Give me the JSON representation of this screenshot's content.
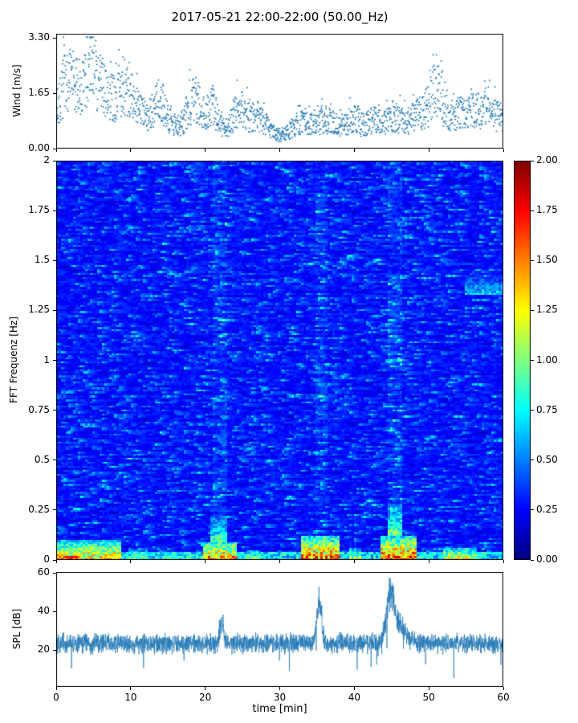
{
  "title": "2017-05-21 22:00-22:00 (50.00_Hz)",
  "chart_data": [
    {
      "type": "scatter",
      "name": "wind-speed",
      "ylabel": "Wind [m/s]",
      "ylim": [
        0,
        3.42
      ],
      "yticks": [
        0.0,
        1.65,
        3.3
      ],
      "ytick_labels": [
        "0.00",
        "1.65",
        "3.30"
      ],
      "xlim": [
        0,
        60
      ],
      "marker_color": "#1f77b4",
      "seed": 7,
      "envelope": [
        1.1,
        1.9,
        2.1,
        1.8,
        2.3,
        2.4,
        2.0,
        1.5,
        1.6,
        1.9,
        1.6,
        1.2,
        1.0,
        1.2,
        1.6,
        0.9,
        0.7,
        0.8,
        1.4,
        1.5,
        1.1,
        1.3,
        0.8,
        0.6,
        1.1,
        1.3,
        0.9,
        1.0,
        0.8,
        0.5,
        0.4,
        0.5,
        0.7,
        0.8,
        0.7,
        0.8,
        0.9,
        0.8,
        0.7,
        0.8,
        0.9,
        0.7,
        0.8,
        0.9,
        0.8,
        1.0,
        0.9,
        0.8,
        1.0,
        1.1,
        1.3,
        2.0,
        1.2,
        1.0,
        1.1,
        1.0,
        1.2,
        1.1,
        1.3,
        1.0,
        0.9
      ]
    },
    {
      "type": "heatmap",
      "name": "fft-spectrogram",
      "ylabel": "FFT Frequenz [Hz]",
      "ylim": [
        0,
        2
      ],
      "yticks": [
        0,
        0.25,
        0.5,
        0.75,
        1,
        1.25,
        1.5,
        1.75,
        2
      ],
      "ytick_labels": [
        "0",
        "0.25",
        "0.5",
        "0.75",
        "1",
        "1.25",
        "1.5",
        "1.75",
        "2"
      ],
      "xlim": [
        0,
        60
      ],
      "colormap": "jet",
      "vmin": 0,
      "vmax": 2,
      "seed": 11,
      "grid": {
        "cols": 186,
        "rows": 199
      },
      "features": [
        {
          "t0": 0,
          "t1": 8.5,
          "f0": 0,
          "f1": 0.1,
          "v": 1.7
        },
        {
          "t0": 0,
          "t1": 3,
          "f0": 0,
          "f1": 0.05,
          "v": 2.0
        },
        {
          "t0": 9.5,
          "t1": 12,
          "f0": 0,
          "f1": 0.05,
          "v": 1.2
        },
        {
          "t0": 14,
          "t1": 16,
          "f0": 0,
          "f1": 0.04,
          "v": 1.1
        },
        {
          "t0": 19.5,
          "t1": 24,
          "f0": 0,
          "f1": 0.09,
          "v": 1.9
        },
        {
          "t0": 20.5,
          "t1": 23,
          "f0": 0.09,
          "f1": 0.22,
          "v": 1.1
        },
        {
          "t0": 25.5,
          "t1": 27.5,
          "f0": 0,
          "f1": 0.05,
          "v": 1.3
        },
        {
          "t0": 33,
          "t1": 38,
          "f0": 0,
          "f1": 0.12,
          "v": 2.0
        },
        {
          "t0": 39.5,
          "t1": 41,
          "f0": 0,
          "f1": 0.06,
          "v": 1.4
        },
        {
          "t0": 43.5,
          "t1": 48.5,
          "f0": 0,
          "f1": 0.12,
          "v": 2.0
        },
        {
          "t0": 44.5,
          "t1": 46.5,
          "f0": 0.12,
          "f1": 0.28,
          "v": 1.3
        },
        {
          "t0": 52,
          "t1": 56.5,
          "f0": 0,
          "f1": 0.06,
          "v": 1.6
        },
        {
          "t0": 55,
          "t1": 60,
          "f0": 1.33,
          "f1": 1.43,
          "v": 0.85
        }
      ],
      "column_boosts": [
        {
          "t0": 21,
          "t1": 23,
          "k": 1.2
        },
        {
          "t0": 34.8,
          "t1": 36.4,
          "k": 1.2
        },
        {
          "t0": 44.5,
          "t1": 46.5,
          "k": 1.25
        }
      ],
      "colorbar": {
        "ticks": [
          0.0,
          0.25,
          0.5,
          0.75,
          1.0,
          1.25,
          1.5,
          1.75,
          2.0
        ],
        "tick_labels": [
          "0.00",
          "0.25",
          "0.50",
          "0.75",
          "1.00",
          "1.25",
          "1.50",
          "1.75",
          "2.00"
        ]
      }
    },
    {
      "type": "line",
      "name": "spl",
      "ylabel": "SPL [dB]",
      "xlabel": "time [min]",
      "ylim": [
        1,
        60.5
      ],
      "yticks": [
        20,
        40,
        60
      ],
      "ytick_labels": [
        "20",
        "40",
        "60"
      ],
      "xticks": [
        0,
        10,
        20,
        30,
        40,
        50,
        60
      ],
      "xtick_labels": [
        "0",
        "10",
        "20",
        "30",
        "40",
        "50",
        "60"
      ],
      "xlim": [
        0,
        60
      ],
      "line_color": "#1f77b4",
      "baseline": 23.5,
      "noise_amp": 6,
      "seed": 3,
      "peaks": [
        {
          "t": 22.2,
          "amp": 15,
          "w": 0.25
        },
        {
          "t": 35.3,
          "amp": 32,
          "w": 0.3
        },
        {
          "t": 44.8,
          "amp": 27,
          "w": 0.5
        },
        {
          "t": 45.9,
          "amp": 12,
          "w": 1.0
        }
      ]
    }
  ]
}
